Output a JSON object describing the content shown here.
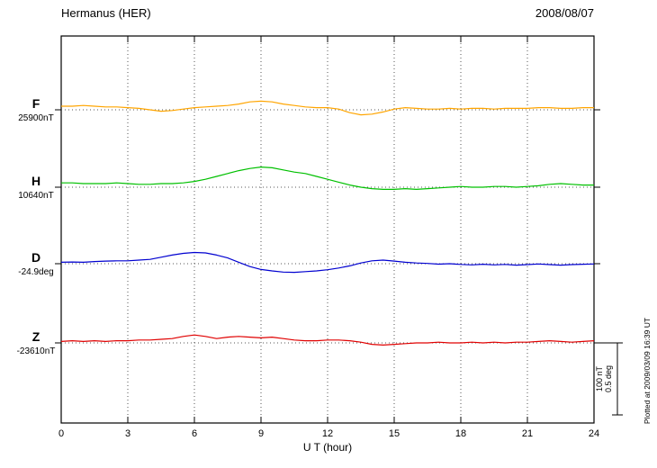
{
  "header": {
    "title": "Hermanus (HER)",
    "date": "2008/08/07"
  },
  "plotted_at": "Plotted at 2009/03/09 16:39 UT",
  "chart_data": {
    "type": "line",
    "title": "Hermanus (HER)",
    "date": "2008/08/07",
    "xlabel": "U T (hour)",
    "xlim": [
      0,
      24
    ],
    "x_ticks": [
      0,
      3,
      6,
      9,
      12,
      15,
      18,
      21,
      24
    ],
    "grid": "vertical dotted lines at 3-hour intervals; dotted horizontal baseline per trace",
    "legend_position": "left margin, one colored letter + baseline value per trace",
    "scale_bar": {
      "labels": [
        "100 nT",
        "0.5 deg"
      ],
      "nT_per_bar": 100,
      "deg_per_bar": 0.5
    },
    "values_are": "offsets from each trace baseline, in the series unit",
    "x_hours": [
      0,
      0.5,
      1,
      1.5,
      2,
      2.5,
      3,
      3.5,
      4,
      4.5,
      5,
      5.5,
      6,
      6.5,
      7,
      7.5,
      8,
      8.5,
      9,
      9.5,
      10,
      10.5,
      11,
      11.5,
      12,
      12.5,
      13,
      13.5,
      14,
      14.5,
      15,
      15.5,
      16,
      16.5,
      17,
      17.5,
      18,
      18.5,
      19,
      19.5,
      20,
      20.5,
      21,
      21.5,
      22,
      22.5,
      23,
      23.5,
      24
    ],
    "series": [
      {
        "name": "F",
        "unit": "nT",
        "baseline_label": "25900nT",
        "baseline_value": 25900,
        "color": "#FFA500",
        "values": [
          5,
          5,
          6,
          5,
          4,
          4,
          3,
          2,
          0,
          -2,
          -1,
          1,
          3,
          4,
          5,
          6,
          8,
          11,
          12,
          11,
          8,
          6,
          4,
          3,
          3,
          1,
          -4,
          -7,
          -6,
          -3,
          1,
          3,
          2,
          1,
          1,
          2,
          1,
          2,
          2,
          1,
          2,
          2,
          2,
          3,
          3,
          2,
          2,
          3,
          3
        ]
      },
      {
        "name": "H",
        "unit": "nT",
        "baseline_label": "10640nT",
        "baseline_value": 10640,
        "color": "#00C000",
        "values": [
          6,
          6,
          5,
          5,
          5,
          6,
          5,
          4,
          4,
          5,
          5,
          6,
          8,
          11,
          15,
          19,
          23,
          26,
          28,
          27,
          24,
          21,
          19,
          15,
          11,
          7,
          3,
          0,
          -2,
          -3,
          -3,
          -2,
          -3,
          -2,
          -1,
          0,
          1,
          0,
          0,
          1,
          1,
          0,
          1,
          2,
          4,
          5,
          4,
          3,
          3
        ]
      },
      {
        "name": "D",
        "unit": "deg",
        "baseline_label": "-24.9deg",
        "baseline_value": -24.9,
        "color": "#0000D0",
        "values": [
          0.01,
          0.012,
          0.01,
          0.015,
          0.018,
          0.02,
          0.02,
          0.025,
          0.03,
          0.045,
          0.06,
          0.072,
          0.078,
          0.075,
          0.06,
          0.04,
          0.01,
          -0.02,
          -0.04,
          -0.05,
          -0.058,
          -0.06,
          -0.055,
          -0.05,
          -0.042,
          -0.03,
          -0.015,
          0.005,
          0.02,
          0.025,
          0.018,
          0.01,
          0.005,
          0.002,
          -0.003,
          0,
          -0.005,
          -0.008,
          -0.004,
          -0.008,
          -0.005,
          -0.01,
          -0.006,
          -0.002,
          -0.006,
          -0.01,
          -0.006,
          -0.004,
          -0.002
        ]
      },
      {
        "name": "Z",
        "unit": "nT",
        "baseline_label": "-23610nT",
        "baseline_value": -23610,
        "color": "#E00000",
        "values": [
          2,
          3,
          2,
          3,
          2,
          3,
          3,
          4,
          4,
          5,
          6,
          9,
          11,
          9,
          6,
          8,
          9,
          8,
          7,
          8,
          6,
          4,
          3,
          3,
          4,
          4,
          3,
          1,
          -2,
          -3,
          -2,
          -1,
          0,
          0,
          1,
          0,
          0,
          1,
          0,
          1,
          0,
          1,
          1,
          2,
          3,
          2,
          1,
          2,
          3
        ]
      }
    ]
  }
}
